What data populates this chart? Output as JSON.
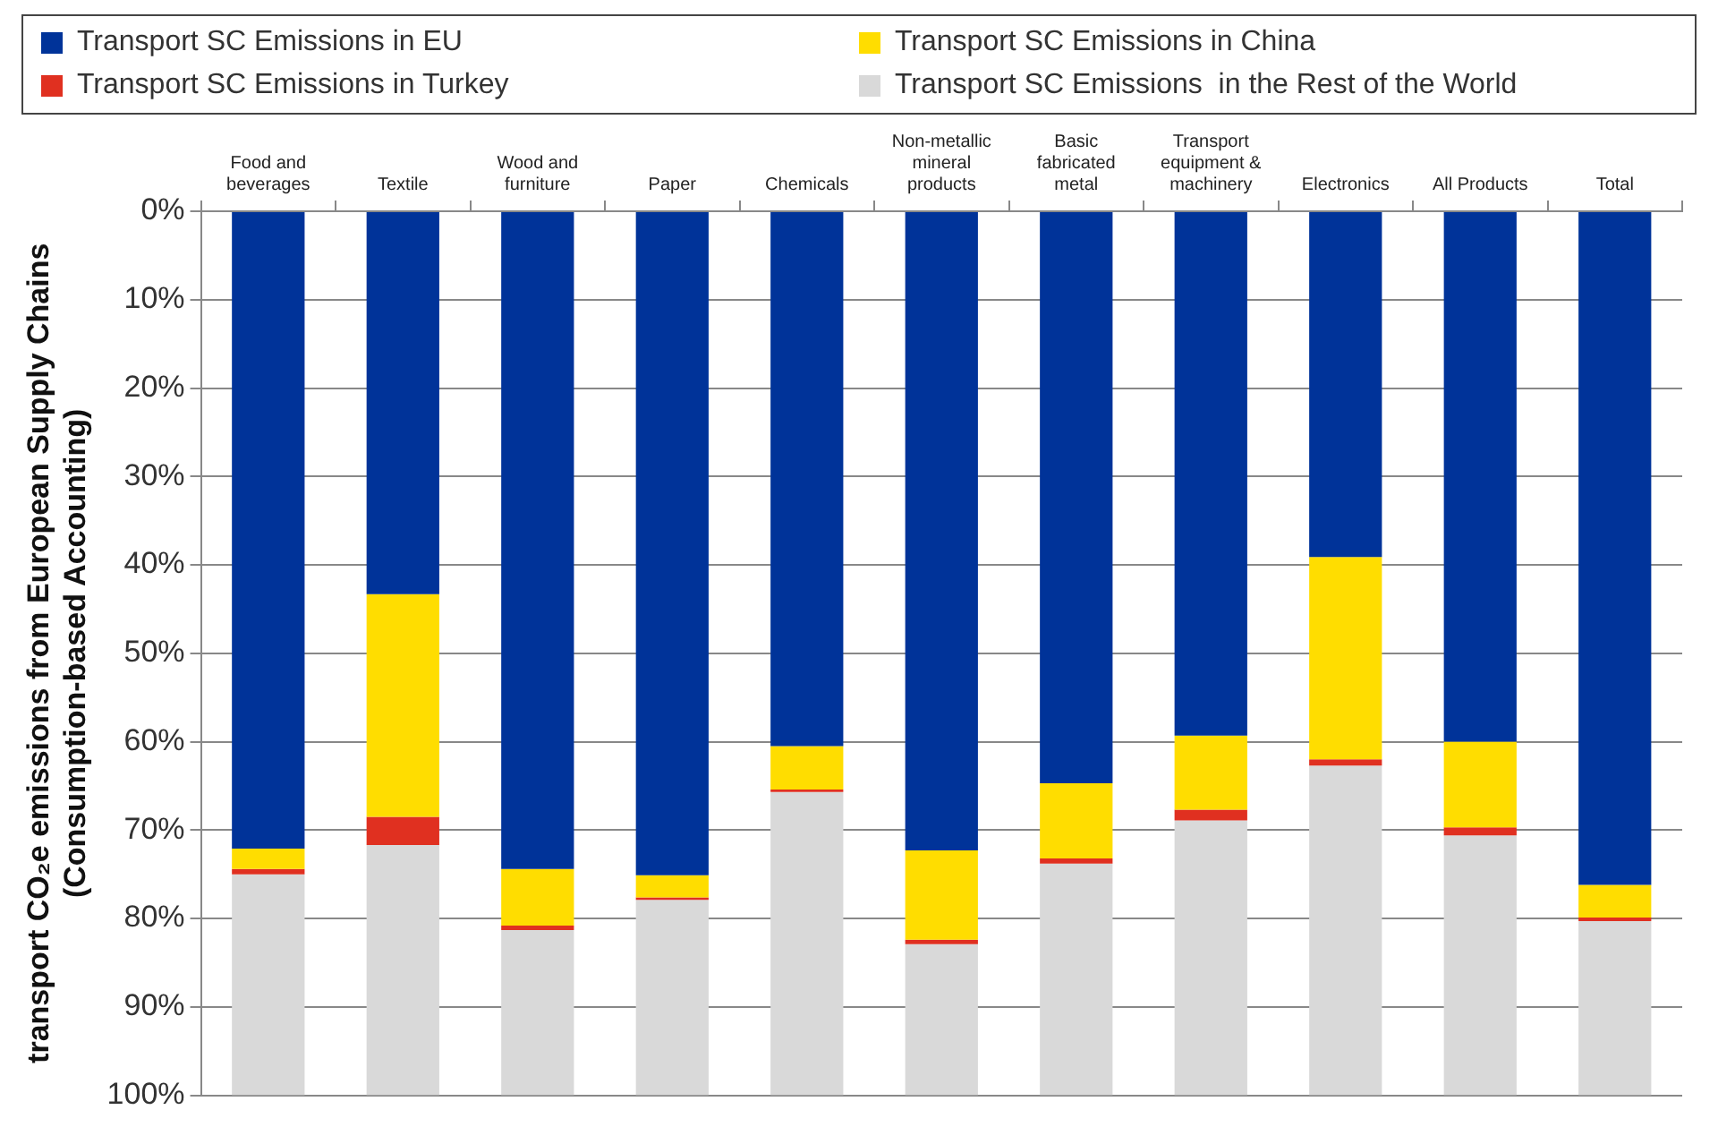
{
  "chart_data": {
    "type": "bar",
    "stacked": true,
    "ylabel": "transport CO₂e emissions from European Supply Chains (Consumption-based Accounting)",
    "categories": [
      "Food and beverages",
      "Textile",
      "Wood and furniture",
      "Paper",
      "Chemicals",
      "Non-metallic mineral products",
      "Basic fabricated metal",
      "Transport equipment & machinery",
      "Electronics",
      "All Products",
      "Total"
    ],
    "series": [
      {
        "name": "Transport SC Emissions in EU",
        "color": "#003399",
        "values": [
          72.1,
          43.3,
          74.4,
          75.1,
          60.5,
          72.3,
          64.7,
          59.3,
          39.1,
          60.0,
          76.2
        ]
      },
      {
        "name": "Transport SC Emissions in China",
        "color": "#ffdd00",
        "values": [
          2.3,
          25.2,
          6.4,
          2.5,
          4.9,
          10.1,
          8.5,
          8.4,
          22.9,
          9.7,
          3.7
        ]
      },
      {
        "name": "Transport SC Emissions in Turkey",
        "color": "#e03020",
        "values": [
          0.6,
          3.2,
          0.5,
          0.3,
          0.3,
          0.5,
          0.6,
          1.2,
          0.7,
          0.9,
          0.4
        ]
      },
      {
        "name": "Transport SC Emissions  in the Rest of the World",
        "color": "#d9d9d9",
        "values": [
          25.0,
          28.3,
          18.7,
          22.1,
          34.3,
          17.1,
          26.2,
          31.1,
          37.3,
          29.4,
          19.7
        ]
      }
    ],
    "ylim": [
      100,
      0
    ],
    "yticks": [
      {
        "value": 0,
        "label": "0%"
      },
      {
        "value": 10,
        "label": "10%"
      },
      {
        "value": 20,
        "label": "20%"
      },
      {
        "value": 30,
        "label": "30%"
      },
      {
        "value": 40,
        "label": "40%"
      },
      {
        "value": 50,
        "label": "50%"
      },
      {
        "value": 60,
        "label": "60%"
      },
      {
        "value": 70,
        "label": "70%"
      },
      {
        "value": 80,
        "label": "80%"
      },
      {
        "value": 90,
        "label": "90%"
      },
      {
        "value": 100,
        "label": "100%"
      }
    ],
    "grid": "y",
    "legend": "top"
  }
}
